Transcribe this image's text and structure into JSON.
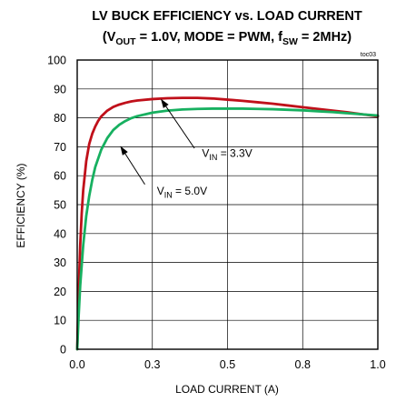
{
  "chart_data": {
    "type": "line",
    "title_line1": "LV BUCK EFFICIENCY vs. LOAD CURRENT",
    "title_line2": {
      "open": "(V",
      "vout_sub": "OUT",
      "mid": " = 1.0V, MODE = PWM, f",
      "fsw_sub": "SW",
      "close": " = 2MHz)"
    },
    "figure_id": "toc03",
    "xlabel": "LOAD CURRENT  (A)",
    "ylabel": "EFFICIENCY (%)",
    "xlim": [
      0,
      1.0
    ],
    "ylim": [
      0,
      100
    ],
    "x_ticks": [
      0,
      0.25,
      0.5,
      0.75,
      1.0
    ],
    "x_tick_labels": [
      "0.0",
      "0.3",
      "0.5",
      "0.8",
      "1.0"
    ],
    "y_ticks": [
      0,
      10,
      20,
      30,
      40,
      50,
      60,
      70,
      80,
      90,
      100
    ],
    "y_tick_labels": [
      "0",
      "10",
      "20",
      "30",
      "40",
      "50",
      "60",
      "70",
      "80",
      "90",
      "100"
    ],
    "grid": true,
    "series": [
      {
        "name": "VIN = 3.3V",
        "label_main": "V",
        "label_sub": "IN",
        "label_rest": " = 3.3V",
        "color": "#c0101a",
        "x": [
          0.0,
          0.005,
          0.01,
          0.015,
          0.02,
          0.03,
          0.04,
          0.05,
          0.06,
          0.07,
          0.08,
          0.1,
          0.12,
          0.14,
          0.16,
          0.18,
          0.2,
          0.25,
          0.3,
          0.35,
          0.4,
          0.45,
          0.5,
          0.55,
          0.6,
          0.65,
          0.7,
          0.75,
          0.8,
          0.85,
          0.9,
          0.95,
          1.0
        ],
        "y": [
          0,
          20,
          36,
          47,
          55,
          65,
          71,
          74.5,
          77,
          79,
          80.5,
          82.5,
          83.8,
          84.6,
          85.2,
          85.7,
          86.0,
          86.5,
          86.8,
          86.9,
          86.9,
          86.7,
          86.3,
          85.9,
          85.4,
          84.9,
          84.3,
          83.7,
          83.1,
          82.5,
          81.9,
          81.2,
          80.5
        ]
      },
      {
        "name": "VIN = 5.0V",
        "label_main": "V",
        "label_sub": "IN",
        "label_rest": " = 5.0V",
        "color": "#17b060",
        "x": [
          0.0,
          0.005,
          0.01,
          0.02,
          0.03,
          0.04,
          0.05,
          0.06,
          0.08,
          0.1,
          0.12,
          0.14,
          0.16,
          0.18,
          0.2,
          0.25,
          0.3,
          0.35,
          0.4,
          0.45,
          0.5,
          0.55,
          0.6,
          0.65,
          0.7,
          0.75,
          0.8,
          0.85,
          0.9,
          0.95,
          1.0
        ],
        "y": [
          0,
          12,
          22,
          36,
          46,
          53,
          58.5,
          63,
          69,
          73,
          75.8,
          77.6,
          78.9,
          79.9,
          80.6,
          81.8,
          82.5,
          82.9,
          83.1,
          83.2,
          83.2,
          83.2,
          83.1,
          83.0,
          82.8,
          82.6,
          82.3,
          82.0,
          81.6,
          81.2,
          80.8
        ]
      }
    ],
    "annotations": [
      {
        "series": 0,
        "text_x": 0.415,
        "text_y": 66.5,
        "arrow_from": [
          0.39,
          69.5
        ],
        "arrow_to": [
          0.28,
          86.3
        ]
      },
      {
        "series": 1,
        "text_x": 0.265,
        "text_y": 53.5,
        "arrow_from": [
          0.225,
          57.0
        ],
        "arrow_to": [
          0.145,
          70.0
        ]
      }
    ]
  }
}
